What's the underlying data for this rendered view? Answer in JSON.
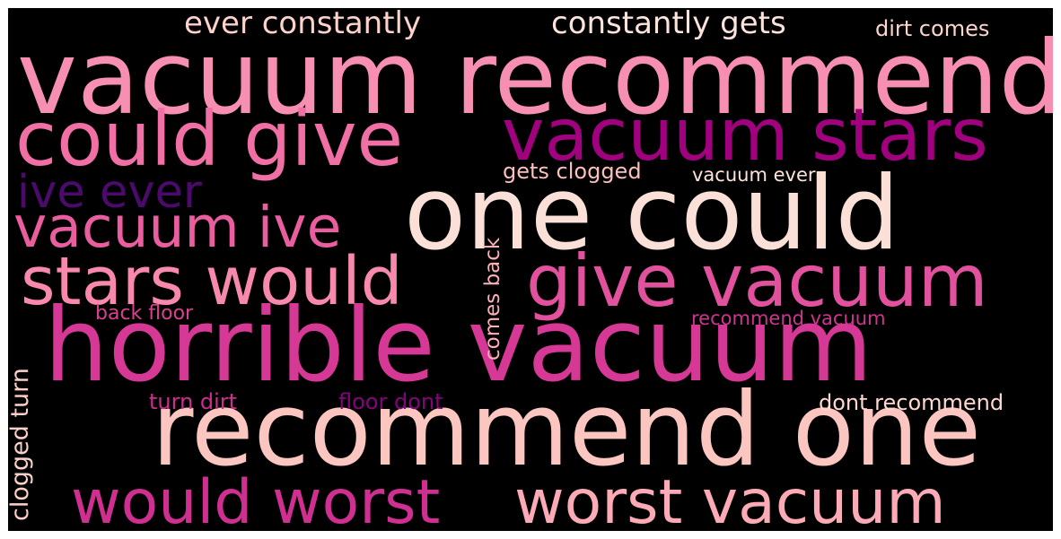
{
  "wordcloud": {
    "background": "#000000",
    "words": [
      {
        "text": "vacuum recommend",
        "color": "#f78fb3"
      },
      {
        "text": "one could",
        "color": "#fbe0d8"
      },
      {
        "text": "horrible vacuum",
        "color": "#d63896"
      },
      {
        "text": "recommend one",
        "color": "#fbc5c0"
      },
      {
        "text": "could give",
        "color": "#f06fa4"
      },
      {
        "text": "vacuum stars",
        "color": "#a1007f"
      },
      {
        "text": "give vacuum",
        "color": "#e2519d"
      },
      {
        "text": "stars would",
        "color": "#f889ad"
      },
      {
        "text": "worst vacuum",
        "color": "#fbaab6"
      },
      {
        "text": "would worst",
        "color": "#cf2f91"
      },
      {
        "text": "vacuum ive",
        "color": "#ea5ea0"
      },
      {
        "text": "ive ever",
        "color": "#4b0a6c"
      },
      {
        "text": "ever constantly",
        "color": "#fcd2ca"
      },
      {
        "text": "constantly gets",
        "color": "#fde3dc"
      },
      {
        "text": "dirt comes",
        "color": "#fcd4cc"
      },
      {
        "text": "gets clogged",
        "color": "#fbc0bd"
      },
      {
        "text": "vacuum ever",
        "color": "#fde3dc"
      },
      {
        "text": "comes back",
        "color": "#fbb0b9"
      },
      {
        "text": "back floor",
        "color": "#d9418f"
      },
      {
        "text": "recommend vacuum",
        "color": "#ce3591"
      },
      {
        "text": "clogged turn",
        "color": "#fcd0c8"
      },
      {
        "text": "turn dirt",
        "color": "#cf2c8f"
      },
      {
        "text": "floor dont",
        "color": "#86027e"
      },
      {
        "text": "dont recommend",
        "color": "#fdd8d0"
      }
    ]
  }
}
